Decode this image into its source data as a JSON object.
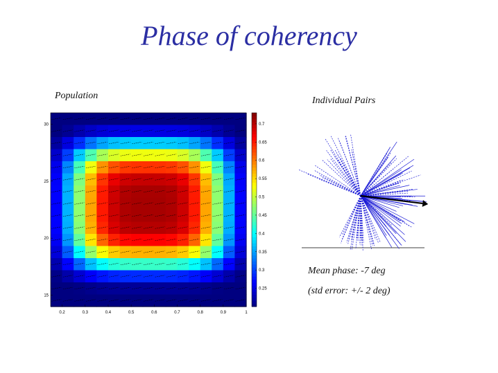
{
  "slide": {
    "title": "Phase of coherency",
    "population_label": "Population",
    "pairs_label": "Individual Pairs",
    "mean_phase": "Mean phase: -7 deg",
    "std_error": "(std error: +/- 2 deg)"
  },
  "chart_data": [
    {
      "type": "heatmap",
      "title": "Population",
      "x_ticks": [
        "0.2",
        "0.3",
        "0.4",
        "0.5",
        "0.6",
        "0.7",
        "0.8",
        "0.9",
        "1"
      ],
      "y_ticks": [
        "15",
        "20",
        "25",
        "30"
      ],
      "xlim": [
        0.15,
        1.0
      ],
      "ylim": [
        14,
        31
      ],
      "colorbar_ticks": [
        "0.25",
        "0.3",
        "0.35",
        "0.4",
        "0.45",
        "0.5",
        "0.55",
        "0.6",
        "0.65",
        "0.7"
      ],
      "clim": [
        0.2,
        0.73
      ],
      "grid_rows": 16,
      "grid_cols": 17,
      "colormap": "jet"
    },
    {
      "type": "polar",
      "title": "Individual Pairs",
      "mean_phase_deg": -7,
      "std_error_deg": 2,
      "line_color": "#1a1ad6",
      "arrow_color": "#000000"
    }
  ]
}
